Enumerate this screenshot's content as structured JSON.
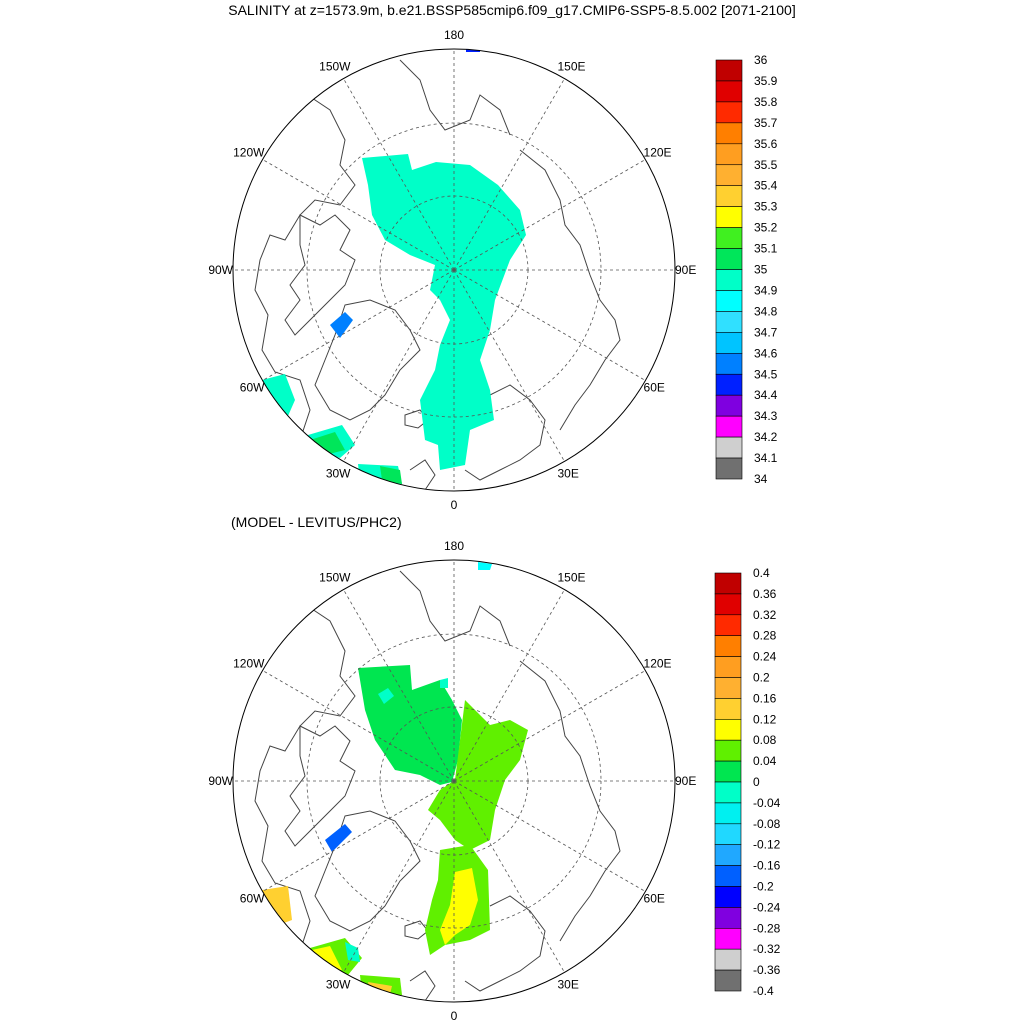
{
  "title": "SALINITY at z=1573.9m, b.e21.BSSP585cmip6.f09_g17.CMIP6-SSP5-8.5.002 [2071-2100]",
  "subtitle": "(MODEL - LEVITUS/PHC2)",
  "colors": {
    "land_outline": "#444444",
    "grid": "#555555",
    "frame": "#000000"
  },
  "panels": [
    {
      "id": "salinity",
      "lon_labels": [
        "180",
        "150E",
        "120E",
        "90E",
        "60E",
        "30E",
        "0",
        "30W",
        "60W",
        "90W",
        "120W",
        "150W"
      ],
      "colorbar": {
        "labels": [
          "36",
          "35.9",
          "35.8",
          "35.7",
          "35.6",
          "35.5",
          "35.4",
          "35.3",
          "35.2",
          "35.1",
          "35",
          "34.9",
          "34.8",
          "34.7",
          "34.6",
          "34.5",
          "34.4",
          "34.3",
          "34.2",
          "34.1",
          "34"
        ],
        "colors": [
          "#c00000",
          "#e00000",
          "#ff2a00",
          "#ff7f00",
          "#ff9e20",
          "#ffb030",
          "#ffd030",
          "#ffff00",
          "#40f020",
          "#00e65a",
          "#00ffc8",
          "#00ffff",
          "#30e0ff",
          "#00c4ff",
          "#0080ff",
          "#0020ff",
          "#7f00e0",
          "#ff00ff",
          "#cfcfcf",
          "#707070"
        ]
      }
    },
    {
      "id": "difference",
      "lon_labels": [
        "180",
        "150E",
        "120E",
        "90E",
        "60E",
        "30E",
        "0",
        "30W",
        "60W",
        "90W",
        "120W",
        "150W"
      ],
      "colorbar": {
        "labels": [
          "0.4",
          "0.36",
          "0.32",
          "0.28",
          "0.24",
          "0.2",
          "0.16",
          "0.12",
          "0.08",
          "0.04",
          "0",
          "-0.04",
          "-0.08",
          "-0.12",
          "-0.16",
          "-0.2",
          "-0.24",
          "-0.28",
          "-0.32",
          "-0.36",
          "-0.4"
        ],
        "colors": [
          "#c00000",
          "#e00000",
          "#ff2a00",
          "#ff7f00",
          "#ff9e20",
          "#ffb030",
          "#ffd030",
          "#ffff00",
          "#60f000",
          "#00e650",
          "#00ffc8",
          "#00f0f0",
          "#20d8ff",
          "#20a8ff",
          "#0060ff",
          "#0000ff",
          "#8000e0",
          "#ff00ff",
          "#cfcfcf",
          "#707070"
        ]
      }
    }
  ]
}
